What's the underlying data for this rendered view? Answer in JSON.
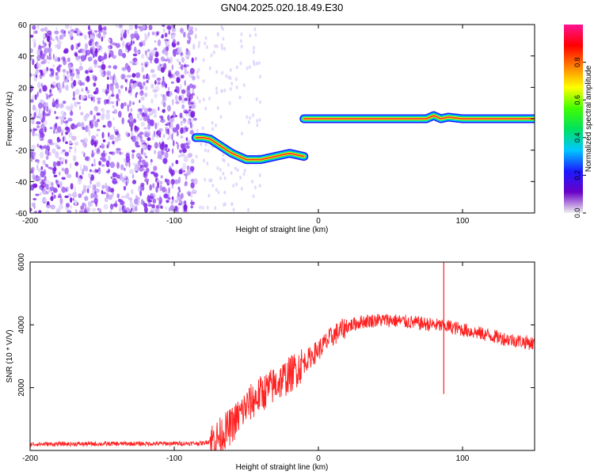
{
  "title": "GN04.2025.020.18.49.E30",
  "chart_data": [
    {
      "type": "heatmap",
      "xlabel": "Height of straight line (km)",
      "ylabel": "Frequency (Hz)",
      "xlim": [
        -200,
        150
      ],
      "ylim": [
        -60,
        60
      ],
      "xticks": [
        -200,
        -100,
        0,
        100
      ],
      "yticks": [
        -60,
        -40,
        -20,
        0,
        20,
        40,
        60
      ],
      "colorbar": {
        "label": "Normalized spectral amplitude",
        "range": [
          0,
          1
        ],
        "ticks": [
          "0.0",
          "0.2",
          "0.4",
          "0.6",
          "0.8"
        ],
        "colors": [
          "#f0f0f0",
          "#6a00c8",
          "#1a1aff",
          "#00c8ff",
          "#00e060",
          "#40ff00",
          "#ffff00",
          "#ff8000",
          "#ff0000",
          "#ff1493"
        ]
      },
      "noise_region": {
        "x": [
          -200,
          -85
        ],
        "y": [
          -60,
          60
        ]
      },
      "ridge": [
        {
          "x": -85,
          "y": -12
        },
        {
          "x": -80,
          "y": -12
        },
        {
          "x": -75,
          "y": -13
        },
        {
          "x": -70,
          "y": -16
        },
        {
          "x": -65,
          "y": -19
        },
        {
          "x": -60,
          "y": -22
        },
        {
          "x": -55,
          "y": -24
        },
        {
          "x": -50,
          "y": -26
        },
        {
          "x": -45,
          "y": -26
        },
        {
          "x": -40,
          "y": -26
        },
        {
          "x": -35,
          "y": -25
        },
        {
          "x": -30,
          "y": -24
        },
        {
          "x": -25,
          "y": -23
        },
        {
          "x": -20,
          "y": -22
        },
        {
          "x": -15,
          "y": -23
        },
        {
          "x": -10,
          "y": -24
        }
      ],
      "carrier": [
        {
          "x": -10,
          "y": 0
        },
        {
          "x": 20,
          "y": 0
        },
        {
          "x": 50,
          "y": 0
        },
        {
          "x": 75,
          "y": 0
        },
        {
          "x": 80,
          "y": 2
        },
        {
          "x": 85,
          "y": 0
        },
        {
          "x": 90,
          "y": 1
        },
        {
          "x": 100,
          "y": 0
        },
        {
          "x": 150,
          "y": 0
        }
      ]
    },
    {
      "type": "line",
      "xlabel": "Height of straight line (km)",
      "ylabel": "SNR (10 * V/V)",
      "xlim": [
        -200,
        150
      ],
      "ylim": [
        0,
        6000
      ],
      "xticks": [
        -200,
        -100,
        0,
        100
      ],
      "yticks": [
        2000,
        4000,
        6000
      ],
      "color": "#ff2020",
      "series": [
        {
          "values": [
            {
              "x": -200,
              "y": 200
            },
            {
              "x": -150,
              "y": 210
            },
            {
              "x": -100,
              "y": 220
            },
            {
              "x": -80,
              "y": 230
            },
            {
              "x": -70,
              "y": 400
            },
            {
              "x": -60,
              "y": 800
            },
            {
              "x": -50,
              "y": 1400
            },
            {
              "x": -40,
              "y": 1800
            },
            {
              "x": -30,
              "y": 2100
            },
            {
              "x": -20,
              "y": 2400
            },
            {
              "x": -10,
              "y": 2800
            },
            {
              "x": 0,
              "y": 3200
            },
            {
              "x": 10,
              "y": 3650
            },
            {
              "x": 20,
              "y": 3950
            },
            {
              "x": 30,
              "y": 4100
            },
            {
              "x": 40,
              "y": 4150
            },
            {
              "x": 50,
              "y": 4150
            },
            {
              "x": 60,
              "y": 4100
            },
            {
              "x": 70,
              "y": 4050
            },
            {
              "x": 80,
              "y": 4000
            },
            {
              "x": 90,
              "y": 3950
            },
            {
              "x": 100,
              "y": 3850
            },
            {
              "x": 110,
              "y": 3750
            },
            {
              "x": 120,
              "y": 3650
            },
            {
              "x": 130,
              "y": 3550
            },
            {
              "x": 140,
              "y": 3480
            },
            {
              "x": 150,
              "y": 3400
            }
          ]
        }
      ],
      "spikes": [
        {
          "x": 87,
          "y_min": 1800,
          "y_max": 6000
        }
      ]
    }
  ]
}
